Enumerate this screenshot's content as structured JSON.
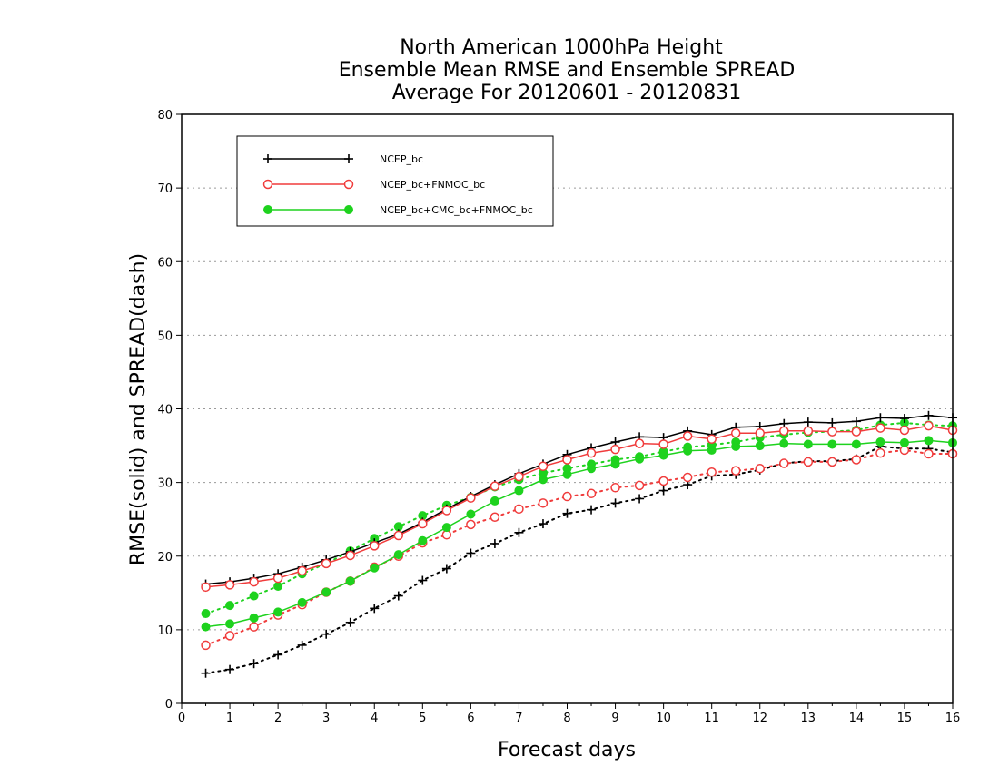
{
  "title_lines": [
    "North American 1000hPa Height",
    "Ensemble Mean RMSE and Ensemble SPREAD",
    "Average For 20120601 - 20120831"
  ],
  "colors": {
    "NCEP_bc": "#000000",
    "NCEP_bc+FNMOC_bc": "#f03c3c",
    "NCEP_bc+CMC_bc+FNMOC_bc": "#1ed21e"
  },
  "chart_data": {
    "type": "line",
    "title": "North American 1000hPa Height Ensemble Mean RMSE and Ensemble SPREAD Average For 20120601 - 20120831",
    "xlabel": "Forecast days",
    "ylabel": "RMSE(solid) and SPREAD(dash)",
    "xlim": [
      0,
      16
    ],
    "ylim": [
      0,
      80
    ],
    "xticks": [
      0,
      1,
      2,
      3,
      4,
      5,
      6,
      7,
      8,
      9,
      10,
      11,
      12,
      13,
      14,
      15,
      16
    ],
    "yticks": [
      0,
      10,
      20,
      30,
      40,
      50,
      60,
      70,
      80
    ],
    "grid": "horizontal dotted",
    "legend_position": "top-left",
    "x": [
      0.5,
      1,
      1.5,
      2,
      2.5,
      3,
      3.5,
      4,
      4.5,
      5,
      5.5,
      6,
      6.5,
      7,
      7.5,
      8,
      8.5,
      9,
      9.5,
      10,
      10.5,
      11,
      11.5,
      12,
      12.5,
      13,
      13.5,
      14,
      14.5,
      15,
      15.5,
      16
    ],
    "series": [
      {
        "name": "NCEP_bc",
        "metric": "RMSE",
        "style": "solid",
        "marker": "plus",
        "values": [
          16.2,
          16.5,
          17.0,
          17.6,
          18.5,
          19.5,
          20.6,
          21.8,
          23.0,
          24.6,
          26.4,
          28.1,
          29.7,
          31.2,
          32.5,
          33.8,
          34.7,
          35.5,
          36.2,
          36.1,
          37.0,
          36.5,
          37.5,
          37.6,
          38.0,
          38.2,
          38.1,
          38.3,
          38.8,
          38.7,
          39.1,
          38.8
        ]
      },
      {
        "name": "NCEP_bc+FNMOC_bc",
        "metric": "RMSE",
        "style": "solid",
        "marker": "open-circle",
        "values": [
          15.8,
          16.1,
          16.5,
          17.0,
          18.0,
          19.0,
          20.1,
          21.4,
          22.8,
          24.4,
          26.2,
          27.9,
          29.5,
          30.8,
          32.2,
          33.1,
          34.0,
          34.5,
          35.3,
          35.2,
          36.3,
          35.9,
          36.7,
          36.7,
          37.0,
          37.0,
          36.9,
          36.9,
          37.4,
          37.1,
          37.7,
          37.1
        ]
      },
      {
        "name": "NCEP_bc+CMC_bc+FNMOC_bc",
        "metric": "RMSE",
        "style": "solid",
        "marker": "filled-circle",
        "values": [
          10.4,
          10.8,
          11.6,
          12.4,
          13.7,
          15.1,
          16.6,
          18.4,
          20.2,
          22.1,
          23.9,
          25.7,
          27.5,
          28.9,
          30.4,
          31.1,
          31.9,
          32.5,
          33.2,
          33.7,
          34.3,
          34.4,
          34.9,
          35.0,
          35.3,
          35.2,
          35.2,
          35.2,
          35.5,
          35.4,
          35.7,
          35.4
        ]
      },
      {
        "name": "NCEP_bc",
        "metric": "SPREAD",
        "style": "dash",
        "marker": "plus",
        "values": [
          4.1,
          4.6,
          5.4,
          6.6,
          7.9,
          9.4,
          11.0,
          12.9,
          14.6,
          16.7,
          18.3,
          20.4,
          21.7,
          23.2,
          24.4,
          25.8,
          26.3,
          27.2,
          27.8,
          28.9,
          29.7,
          30.9,
          31.1,
          31.7,
          32.6,
          32.9,
          32.9,
          33.2,
          34.9,
          34.6,
          34.6,
          34.1
        ]
      },
      {
        "name": "NCEP_bc+FNMOC_bc",
        "metric": "SPREAD",
        "style": "dash",
        "marker": "open-circle",
        "values": [
          7.9,
          9.2,
          10.4,
          12.0,
          13.4,
          15.1,
          16.6,
          18.5,
          20.0,
          21.8,
          22.9,
          24.3,
          25.3,
          26.4,
          27.2,
          28.1,
          28.5,
          29.3,
          29.6,
          30.2,
          30.7,
          31.4,
          31.6,
          31.9,
          32.6,
          32.8,
          32.8,
          33.1,
          34.0,
          34.4,
          33.9,
          33.9
        ]
      },
      {
        "name": "NCEP_bc+CMC_bc+FNMOC_bc",
        "metric": "SPREAD",
        "style": "dash",
        "marker": "filled-circle",
        "values": [
          12.2,
          13.3,
          14.6,
          15.9,
          17.6,
          19.0,
          20.7,
          22.4,
          24.0,
          25.5,
          26.9,
          28.0,
          29.4,
          30.4,
          31.3,
          31.9,
          32.5,
          33.1,
          33.5,
          34.2,
          34.8,
          35.1,
          35.5,
          36.1,
          36.5,
          36.8,
          36.9,
          37.1,
          37.8,
          38.1,
          37.8,
          37.7
        ]
      }
    ]
  }
}
